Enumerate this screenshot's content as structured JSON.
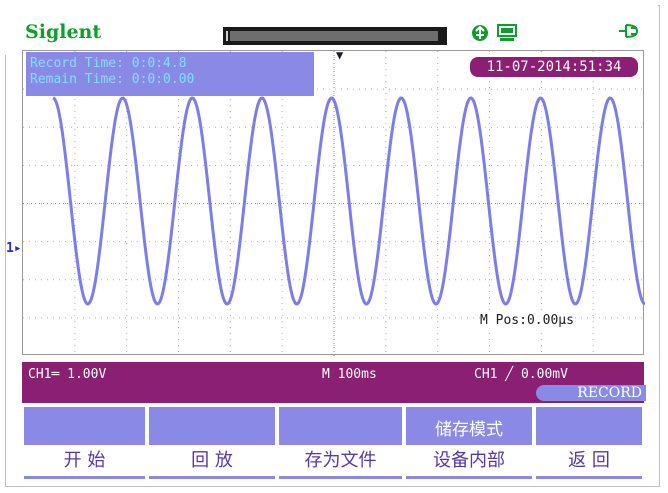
{
  "header": {
    "brand": "Siglent",
    "icons": [
      "usb-icon",
      "printer-icon",
      "power-plug-icon"
    ],
    "brand_color": "#0e9e2b"
  },
  "overlay": {
    "record_time": "Record Time: 0:0:4.8",
    "remain_time": "Remain Time: 0:0:0.00",
    "timestamp": "11-07-2014:51:34",
    "m_pos": "M Pos:0.00μs"
  },
  "waveform": {
    "color": "#7d7de8",
    "cycles_visible": 8.5
  },
  "status": {
    "ch1_scale": "CH1═ 1.00V",
    "timebase": "M 100ms",
    "trigger": "CH1 ╱ 0.00mV",
    "mode": "RECORD",
    "bar_color": "#8b1f73"
  },
  "menu": {
    "buttons": [
      {
        "header": "",
        "label": "开 始"
      },
      {
        "header": "",
        "label": "回 放"
      },
      {
        "header": "",
        "label": "存为文件"
      },
      {
        "header": "储存模式",
        "label": "设备内部"
      },
      {
        "header": "",
        "label": "返 回"
      }
    ],
    "button_color": "#8a8ae6",
    "label_color": "#5a36a8"
  }
}
